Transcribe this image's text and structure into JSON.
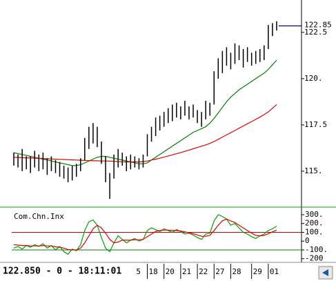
{
  "chart_data": [
    {
      "type": "ohlc",
      "ylim": [
        113.43,
        124.25
      ],
      "yticks": [
        122.5,
        {
          "value": 120,
          "label": "120."
        },
        117.5,
        {
          "value": 115,
          "label": "115."
        }
      ],
      "xlim": [
        -0.5,
        64
      ],
      "xticks": [
        {
          "value": 29,
          "label": "5"
        },
        {
          "value": 32,
          "label": "18"
        },
        {
          "value": 36,
          "label": "20"
        },
        {
          "value": 40,
          "label": "21"
        },
        {
          "value": 44,
          "label": "22"
        },
        {
          "value": 48,
          "label": "27"
        },
        {
          "value": 52,
          "label": "28"
        },
        {
          "value": 57,
          "label": "29"
        },
        {
          "value": 61,
          "label": "01"
        }
      ],
      "color": "#000000",
      "low": [
        115.3,
        115.2,
        115.0,
        115.1,
        114.9,
        115.2,
        115.0,
        115.1,
        114.8,
        115.0,
        114.9,
        114.7,
        114.6,
        114.4,
        114.5,
        114.7,
        115.0,
        115.6,
        116.2,
        116.5,
        116.3,
        115.4,
        114.4,
        113.5,
        114.6,
        115.2,
        115.3,
        115.0,
        115.1,
        115.2,
        115.1,
        115.2,
        115.8,
        116.6,
        116.9,
        117.2,
        117.4,
        117.6,
        117.7,
        117.9,
        117.8,
        118.0,
        117.8,
        117.9,
        117.6,
        117.4,
        117.8,
        118.0,
        118.6,
        120.0,
        120.3,
        120.7,
        120.5,
        120.8,
        121.0,
        120.6,
        120.9,
        120.7,
        120.8,
        120.9,
        121.0,
        121.6,
        122.3,
        122.6
      ],
      "high": [
        116.0,
        115.9,
        116.2,
        115.8,
        115.8,
        116.1,
        115.9,
        116.0,
        115.7,
        115.8,
        115.6,
        115.5,
        115.3,
        115.2,
        115.3,
        115.4,
        115.7,
        116.8,
        117.4,
        117.6,
        117.4,
        116.6,
        115.8,
        114.9,
        115.9,
        116.2,
        116.0,
        115.8,
        115.9,
        115.8,
        115.7,
        115.9,
        117.0,
        117.4,
        117.9,
        118.0,
        118.2,
        118.4,
        118.6,
        118.7,
        118.5,
        118.8,
        118.5,
        118.6,
        118.3,
        118.2,
        118.8,
        118.7,
        120.4,
        121.1,
        121.5,
        121.7,
        121.4,
        121.9,
        121.8,
        121.6,
        121.7,
        121.4,
        121.5,
        121.6,
        121.8,
        122.9,
        123.0,
        123.1
      ],
      "moving_averages": [
        {
          "color": "#008000",
          "values": [
            116.0,
            115.95,
            115.9,
            115.85,
            115.8,
            115.75,
            115.7,
            115.65,
            115.6,
            115.55,
            115.5,
            115.45,
            115.4,
            115.35,
            115.3,
            115.3,
            115.35,
            115.45,
            115.55,
            115.65,
            115.75,
            115.8,
            115.8,
            115.75,
            115.7,
            115.65,
            115.6,
            115.55,
            115.5,
            115.45,
            115.4,
            115.4,
            115.45,
            115.6,
            115.75,
            115.9,
            116.05,
            116.2,
            116.35,
            116.5,
            116.65,
            116.8,
            116.95,
            117.1,
            117.2,
            117.3,
            117.4,
            117.6,
            117.85,
            118.15,
            118.45,
            118.75,
            119.0,
            119.2,
            119.4,
            119.55,
            119.7,
            119.85,
            120.0,
            120.15,
            120.3,
            120.5,
            120.75,
            121.0
          ]
        },
        {
          "color": "#e00000",
          "values": [
            115.75,
            115.74,
            115.73,
            115.72,
            115.71,
            115.7,
            115.69,
            115.68,
            115.67,
            115.66,
            115.65,
            115.64,
            115.63,
            115.62,
            115.61,
            115.6,
            115.59,
            115.58,
            115.57,
            115.56,
            115.56,
            115.55,
            115.55,
            115.54,
            115.53,
            115.52,
            115.51,
            115.5,
            115.5,
            115.5,
            115.5,
            115.52,
            115.55,
            115.6,
            115.65,
            115.7,
            115.76,
            115.82,
            115.88,
            115.94,
            116.0,
            116.07,
            116.14,
            116.21,
            116.28,
            116.35,
            116.42,
            116.5,
            116.6,
            116.72,
            116.84,
            116.96,
            117.08,
            117.2,
            117.32,
            117.44,
            117.56,
            117.68,
            117.8,
            117.92,
            118.06,
            118.2,
            118.4,
            118.6
          ]
        }
      ],
      "last_price": 122.85,
      "last_price_color": "#000080"
    },
    {
      "type": "line",
      "title": "Com.Chn.Inx",
      "ylim": [
        -210,
        386
      ],
      "yticks": [
        {
          "value": 300,
          "label": "300."
        },
        {
          "value": 200,
          "label": "200."
        },
        {
          "value": 100,
          "label": "100."
        },
        0,
        {
          "value": -100,
          "label": "-100."
        },
        {
          "value": -200,
          "label": "-200"
        }
      ],
      "reference_lines": [
        {
          "value": 100,
          "color": "#c00000"
        },
        {
          "value": -100,
          "color": "#008000"
        }
      ],
      "series": [
        {
          "color": "#00a000",
          "values": [
            -80,
            -60,
            -90,
            -50,
            -70,
            -40,
            -60,
            -30,
            -80,
            -50,
            -100,
            -60,
            -120,
            -150,
            -90,
            -110,
            -40,
            120,
            220,
            240,
            180,
            40,
            -80,
            -120,
            -20,
            60,
            20,
            -20,
            10,
            30,
            0,
            20,
            120,
            150,
            130,
            110,
            140,
            120,
            100,
            130,
            110,
            80,
            90,
            70,
            40,
            20,
            80,
            90,
            230,
            300,
            280,
            250,
            180,
            200,
            150,
            100,
            80,
            50,
            30,
            60,
            80,
            120,
            140,
            170
          ]
        },
        {
          "color": "#e00000",
          "values": [
            -40,
            -45,
            -50,
            -50,
            -55,
            -55,
            -55,
            -50,
            -55,
            -55,
            -65,
            -70,
            -80,
            -95,
            -100,
            -100,
            -80,
            -20,
            60,
            140,
            180,
            150,
            90,
            20,
            -20,
            -10,
            10,
            10,
            10,
            15,
            15,
            20,
            50,
            80,
            110,
            120,
            125,
            125,
            120,
            120,
            115,
            105,
            95,
            85,
            70,
            55,
            55,
            65,
            120,
            180,
            230,
            250,
            230,
            210,
            180,
            150,
            120,
            90,
            65,
            60,
            65,
            85,
            105,
            125
          ]
        }
      ]
    }
  ],
  "status": "122.850 - 0 - 18:11:01"
}
